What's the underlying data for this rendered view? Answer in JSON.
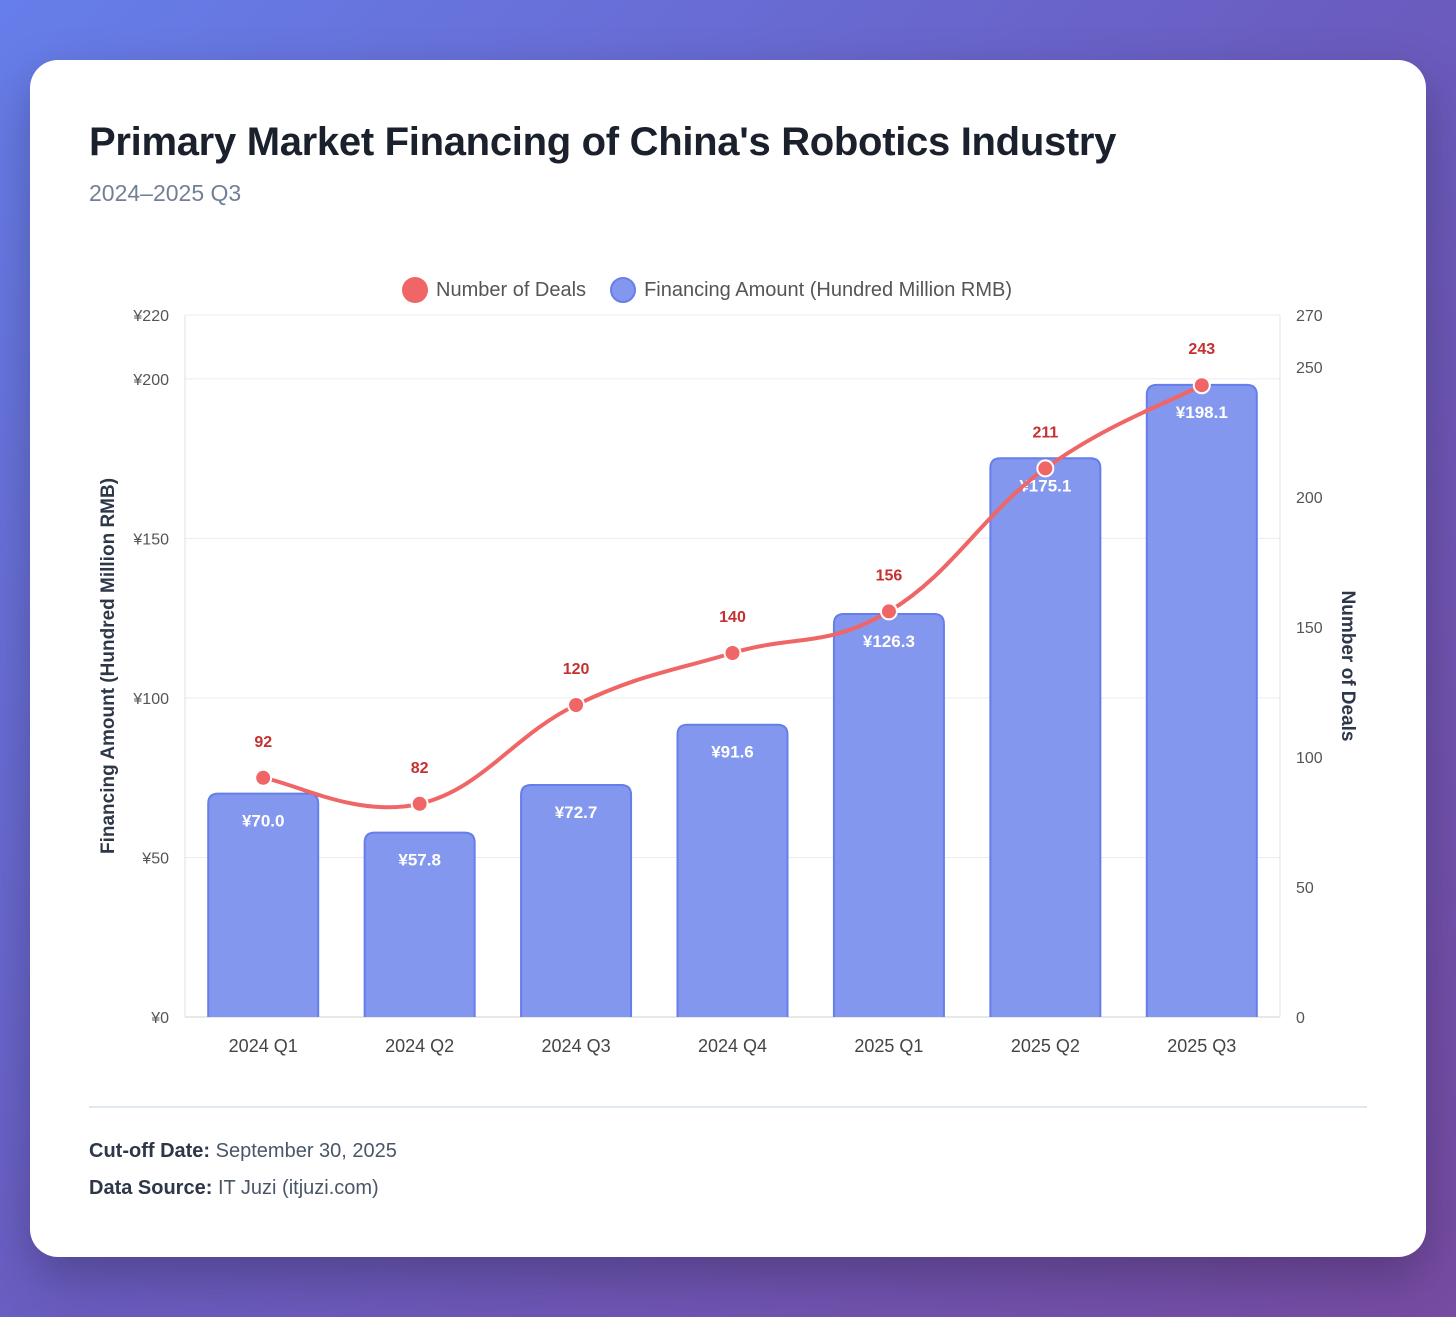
{
  "header": {
    "title": "Primary Market Financing of China's Robotics Industry",
    "subtitle": "2024–2025 Q3"
  },
  "footer": {
    "cutoff_label": "Cut-off Date:",
    "cutoff_value": "September 30, 2025",
    "source_label": "Data Source:",
    "source_value": "IT Juzi (itjuzi.com)"
  },
  "colors": {
    "bar": "#8497ee",
    "bar_border": "#667eea",
    "line": "#f06565",
    "deal_label": "#c53030"
  },
  "chart_data": {
    "type": "bar+line",
    "categories": [
      "2024 Q1",
      "2024 Q2",
      "2024 Q3",
      "2024 Q4",
      "2025 Q1",
      "2025 Q2",
      "2025 Q3"
    ],
    "series": [
      {
        "name": "Financing Amount (Hundred Million RMB)",
        "type": "bar",
        "axis": "left",
        "values": [
          70.0,
          57.8,
          72.7,
          91.6,
          126.3,
          175.1,
          198.1
        ],
        "labels": [
          "¥70.0",
          "¥57.8",
          "¥72.7",
          "¥91.6",
          "¥126.3",
          "¥175.1",
          "¥198.1"
        ]
      },
      {
        "name": "Number of Deals",
        "type": "line",
        "axis": "right",
        "values": [
          92,
          82,
          120,
          140,
          156,
          211,
          243
        ],
        "labels": [
          "92",
          "82",
          "120",
          "140",
          "156",
          "211",
          "243"
        ]
      }
    ],
    "legend": [
      "Number of Deals",
      "Financing Amount (Hundred Million RMB)"
    ],
    "legend_position": "top-center",
    "ylabel": "Financing Amount (Hundred Million RMB)",
    "y2label": "Number of Deals",
    "ylim": [
      0,
      220
    ],
    "y2lim": [
      0,
      270
    ],
    "yticks": [
      0,
      50,
      100,
      150,
      200,
      220
    ],
    "ytick_labels": [
      "¥0",
      "¥50",
      "¥100",
      "¥150",
      "¥200",
      "¥220"
    ],
    "y2ticks": [
      0,
      50,
      100,
      150,
      200,
      250,
      270
    ],
    "y2tick_labels": [
      "0",
      "50",
      "100",
      "150",
      "200",
      "250",
      "270"
    ],
    "grid": true
  }
}
